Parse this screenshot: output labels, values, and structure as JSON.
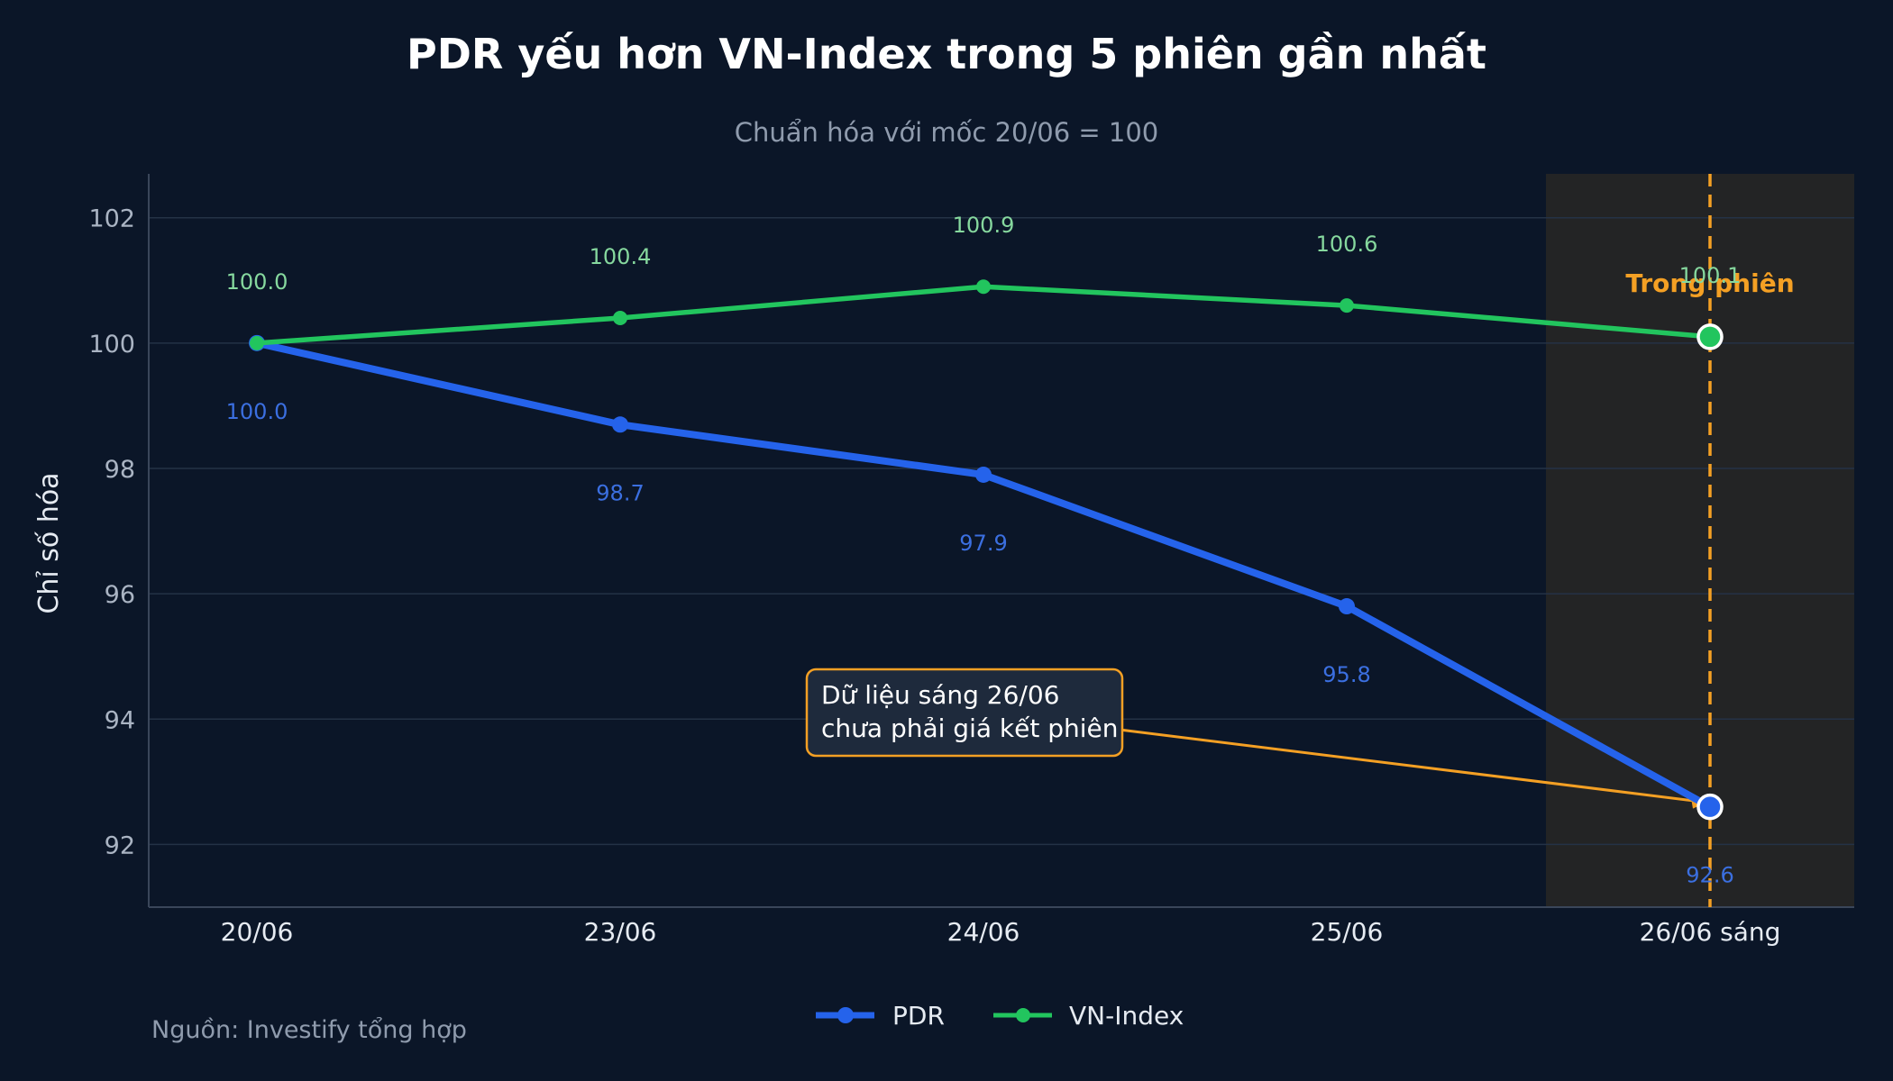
{
  "title": "PDR yếu hơn VN-Index trong 5 phiên gần nhất",
  "subtitle": "Chuẩn hóa với mốc 20/06 = 100",
  "source": "Nguồn: Investify tổng hợp",
  "annotation": {
    "lines": [
      "Dữ liệu sáng 26/06",
      "chưa phải giá kết phiên"
    ]
  },
  "highlight_label": "Trong phiên",
  "colors": {
    "PDR": "#2563eb",
    "VN-Index": "#22c55e",
    "accent": "#f4a024",
    "background": "#0b1628"
  },
  "chart_data": {
    "type": "line",
    "categories": [
      "20/06",
      "23/06",
      "24/06",
      "25/06",
      "26/06 sáng"
    ],
    "ylabel": "Chỉ số hóa",
    "ylim": [
      91,
      102.7
    ],
    "yticks": [
      92,
      94,
      96,
      98,
      100,
      102
    ],
    "grid": true,
    "legend": "bottom-center",
    "series": [
      {
        "name": "PDR",
        "values": [
          100.0,
          98.7,
          97.9,
          95.8,
          92.6
        ],
        "labels": [
          "100.0",
          "98.7",
          "97.9",
          "95.8",
          "92.6"
        ]
      },
      {
        "name": "VN-Index",
        "values": [
          100.0,
          100.4,
          100.9,
          100.6,
          100.1
        ],
        "labels": [
          "100.0",
          "100.4",
          "100.9",
          "100.6",
          "100.1"
        ]
      }
    ]
  }
}
